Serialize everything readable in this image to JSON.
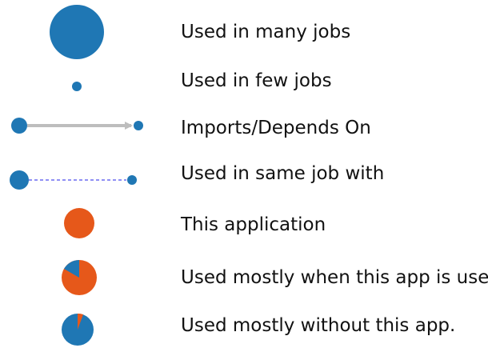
{
  "colors": {
    "blue": "#1f77b4",
    "orange": "#e6581a",
    "gray_arrow": "#bdbdbd",
    "dashed_blue": "#6b6bf0"
  },
  "legend": {
    "items": [
      {
        "key": "large-node",
        "label": "Used in many jobs"
      },
      {
        "key": "small-node",
        "label": "Used in few jobs"
      },
      {
        "key": "imports-arrow",
        "label": "Imports/Depends On"
      },
      {
        "key": "same-job-link",
        "label": "Used in same job with"
      },
      {
        "key": "this-app-node",
        "label": "This application"
      },
      {
        "key": "mostly-with-pie",
        "label": "Used mostly when this app is used"
      },
      {
        "key": "mostly-without-pie",
        "label": "Used mostly without this app."
      }
    ]
  }
}
